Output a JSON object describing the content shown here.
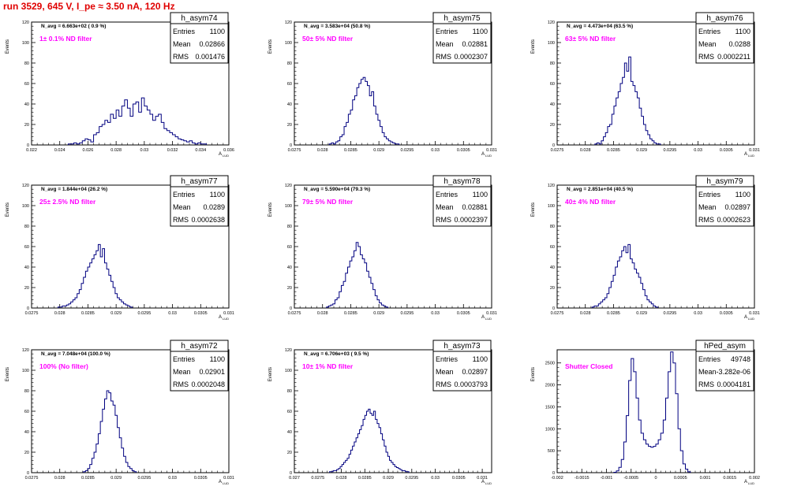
{
  "title": "run 3529,   645 V, I_pe ≈ 3.50 nA, 120 Hz",
  "y_axis_label": "Events",
  "x_axis_label": "A",
  "x_axis_label_sub": "LUD",
  "colors": {
    "title": "#e00000",
    "histogram": "#000080",
    "annotation": "#ff00ff",
    "axis": "#000000"
  },
  "stats_labels": {
    "entries": "Entries",
    "mean": "Mean",
    "rms": "RMS"
  },
  "chart_data": [
    {
      "type": "histogram",
      "name": "h_asym74",
      "navg": "N_avg = 6.663e+02 ( 0.9 %)",
      "filter": "1± 0.1% ND filter",
      "entries": "1100",
      "mean": "0.02866",
      "rms": "0.001476",
      "xlim": [
        0.022,
        0.036
      ],
      "ylim": [
        0,
        120
      ],
      "xticks": [
        "0.022",
        "0.024",
        "0.026",
        "0.028",
        "0.03",
        "0.032",
        "0.034",
        "0.036"
      ],
      "yticks": [
        "0",
        "20",
        "40",
        "60",
        "80",
        "100",
        "120"
      ],
      "bin_width": 0.0002,
      "bin_start": 0.0246,
      "counts": [
        1,
        1,
        2,
        1,
        2,
        4,
        6,
        5,
        3,
        10,
        12,
        18,
        20,
        24,
        22,
        30,
        26,
        34,
        28,
        38,
        44,
        36,
        28,
        40,
        42,
        32,
        46,
        38,
        34,
        30,
        24,
        28,
        30,
        22,
        16,
        14,
        12,
        10,
        8,
        6,
        5,
        4,
        3,
        4,
        2,
        1,
        2,
        1,
        1
      ]
    },
    {
      "type": "histogram",
      "name": "h_asym75",
      "navg": "N_avg = 3.583e+04 (50.8 %)",
      "filter": "50± 5% ND filter",
      "entries": "1100",
      "mean": "0.02881",
      "rms": "0.0002307",
      "xlim": [
        0.0275,
        0.031
      ],
      "ylim": [
        0,
        120
      ],
      "xticks": [
        "0.0275",
        "0.028",
        "0.0285",
        "0.029",
        "0.0295",
        "0.03",
        "0.0305",
        "0.031"
      ],
      "yticks": [
        "0",
        "20",
        "40",
        "60",
        "80",
        "100",
        "120"
      ],
      "bin_width": 3.75e-05,
      "bin_start": 0.02812,
      "counts": [
        1,
        2,
        1,
        3,
        4,
        8,
        10,
        18,
        22,
        30,
        34,
        44,
        48,
        56,
        60,
        64,
        66,
        62,
        58,
        48,
        52,
        38,
        30,
        24,
        18,
        12,
        8,
        6,
        4,
        3,
        2,
        1,
        1
      ]
    },
    {
      "type": "histogram",
      "name": "h_asym76",
      "navg": "N_avg = 4.473e+04 (63.5 %)",
      "filter": "63± 5% ND filter",
      "entries": "1100",
      "mean": "0.0288",
      "rms": "0.0002211",
      "xlim": [
        0.0275,
        0.031
      ],
      "ylim": [
        0,
        120
      ],
      "xticks": [
        "0.0275",
        "0.028",
        "0.0285",
        "0.029",
        "0.0295",
        "0.03",
        "0.0305",
        "0.031"
      ],
      "yticks": [
        "0",
        "20",
        "40",
        "60",
        "80",
        "100",
        "120"
      ],
      "bin_width": 3.75e-05,
      "bin_start": 0.02817,
      "counts": [
        1,
        2,
        1,
        4,
        8,
        12,
        18,
        20,
        30,
        38,
        46,
        52,
        60,
        66,
        80,
        72,
        86,
        62,
        58,
        52,
        46,
        36,
        28,
        20,
        14,
        10,
        6,
        4,
        2,
        1,
        1
      ]
    },
    {
      "type": "histogram",
      "name": "h_asym77",
      "navg": "N_avg = 1.844e+04 (26.2 %)",
      "filter": "25± 2.5% ND filter",
      "entries": "1100",
      "mean": "0.0289",
      "rms": "0.0002638",
      "xlim": [
        0.0275,
        0.031
      ],
      "ylim": [
        0,
        120
      ],
      "xticks": [
        "0.0275",
        "0.028",
        "0.0285",
        "0.029",
        "0.0295",
        "0.03",
        "0.0305",
        "0.031"
      ],
      "yticks": [
        "0",
        "20",
        "40",
        "60",
        "80",
        "100",
        "120"
      ],
      "bin_width": 3.75e-05,
      "bin_start": 0.02797,
      "counts": [
        1,
        1,
        2,
        2,
        3,
        4,
        6,
        8,
        10,
        14,
        18,
        24,
        30,
        36,
        40,
        44,
        48,
        52,
        56,
        62,
        50,
        58,
        44,
        38,
        32,
        26,
        20,
        14,
        10,
        8,
        6,
        4,
        3,
        2,
        1
      ]
    },
    {
      "type": "histogram",
      "name": "h_asym78",
      "navg": "N_avg = 5.590e+04 (79.3 %)",
      "filter": "79± 5% ND filter",
      "entries": "1100",
      "mean": "0.02881",
      "rms": "0.0002397",
      "xlim": [
        0.0275,
        0.031
      ],
      "ylim": [
        0,
        120
      ],
      "xticks": [
        "0.0275",
        "0.028",
        "0.0285",
        "0.029",
        "0.0295",
        "0.03",
        "0.0305",
        "0.031"
      ],
      "yticks": [
        "0",
        "20",
        "40",
        "60",
        "80",
        "100",
        "120"
      ],
      "bin_width": 3.75e-05,
      "bin_start": 0.02807,
      "counts": [
        1,
        2,
        3,
        4,
        8,
        10,
        16,
        22,
        26,
        34,
        40,
        46,
        50,
        56,
        64,
        60,
        52,
        48,
        44,
        36,
        30,
        24,
        18,
        12,
        8,
        5,
        3,
        2,
        1
      ]
    },
    {
      "type": "histogram",
      "name": "h_asym79",
      "navg": "N_avg = 2.851e+04 (40.5 %)",
      "filter": "40± 4% ND filter",
      "entries": "1100",
      "mean": "0.02897",
      "rms": "0.0002623",
      "xlim": [
        0.0275,
        0.031
      ],
      "ylim": [
        0,
        120
      ],
      "xticks": [
        "0.0275",
        "0.028",
        "0.0285",
        "0.029",
        "0.0295",
        "0.03",
        "0.0305",
        "0.031"
      ],
      "yticks": [
        "0",
        "20",
        "40",
        "60",
        "80",
        "100",
        "120"
      ],
      "bin_width": 3.75e-05,
      "bin_start": 0.02812,
      "counts": [
        1,
        2,
        2,
        4,
        6,
        8,
        10,
        14,
        20,
        26,
        32,
        40,
        46,
        50,
        56,
        60,
        54,
        62,
        48,
        44,
        38,
        34,
        30,
        24,
        18,
        12,
        8,
        6,
        4,
        2,
        1
      ]
    },
    {
      "type": "histogram",
      "name": "h_asym72",
      "navg": "N_avg = 7.048e+04 (100.0 %)",
      "filter": "100% (No filter)",
      "entries": "1100",
      "mean": "0.02901",
      "rms": "0.0002048",
      "xlim": [
        0.0275,
        0.031
      ],
      "ylim": [
        0,
        120
      ],
      "xticks": [
        "0.0275",
        "0.028",
        "0.0285",
        "0.029",
        "0.0295",
        "0.03",
        "0.0305",
        "0.031"
      ],
      "yticks": [
        "0",
        "20",
        "40",
        "60",
        "80",
        "100",
        "120"
      ],
      "bin_width": 3.75e-05,
      "bin_start": 0.02842,
      "counts": [
        1,
        2,
        4,
        8,
        14,
        20,
        28,
        38,
        50,
        62,
        72,
        80,
        78,
        70,
        66,
        56,
        44,
        34,
        24,
        16,
        10,
        6,
        4,
        2,
        1
      ]
    },
    {
      "type": "histogram",
      "name": "h_asym73",
      "navg": "N_avg = 6.706e+03 ( 9.5 %)",
      "filter": "10± 1% ND filter",
      "entries": "1100",
      "mean": "0.02897",
      "rms": "0.0003793",
      "xlim": [
        0.027,
        0.0312
      ],
      "ylim": [
        0,
        120
      ],
      "xticks": [
        "0.027",
        "0.0275",
        "0.028",
        "0.0285",
        "0.029",
        "0.0295",
        "0.03",
        "0.0305",
        "0.031"
      ],
      "yticks": [
        "0",
        "20",
        "40",
        "60",
        "80",
        "100",
        "120"
      ],
      "bin_width": 3.75e-05,
      "bin_start": 0.02775,
      "counts": [
        1,
        1,
        2,
        2,
        3,
        4,
        6,
        8,
        10,
        12,
        14,
        18,
        22,
        26,
        30,
        34,
        38,
        42,
        46,
        52,
        56,
        60,
        62,
        58,
        56,
        60,
        52,
        48,
        44,
        38,
        32,
        26,
        20,
        16,
        12,
        10,
        8,
        6,
        5,
        4,
        3,
        2,
        2,
        1,
        1
      ]
    },
    {
      "type": "histogram",
      "name": "hPed_asym",
      "navg": "",
      "filter": "Shutter Closed",
      "entries": "49748",
      "mean": "-3.282e-06",
      "rms": "0.0004181",
      "xlim": [
        -0.002,
        0.002
      ],
      "ylim": [
        0,
        2800
      ],
      "xticks": [
        "-0.002",
        "-0.0015",
        "-0.001",
        "-0.0005",
        "0",
        "0.0005",
        "0.001",
        "0.0015",
        "0.002"
      ],
      "yticks": [
        "0",
        "500",
        "1000",
        "1500",
        "2000",
        "2500"
      ],
      "bin_width": 5e-05,
      "bin_start": -0.00085,
      "counts": [
        10,
        40,
        120,
        300,
        700,
        1300,
        2100,
        2600,
        2300,
        1700,
        1200,
        900,
        750,
        650,
        600,
        580,
        600,
        650,
        750,
        900,
        1200,
        1700,
        2300,
        2750,
        2500,
        1800,
        1000,
        500,
        200,
        80,
        20
      ]
    }
  ]
}
